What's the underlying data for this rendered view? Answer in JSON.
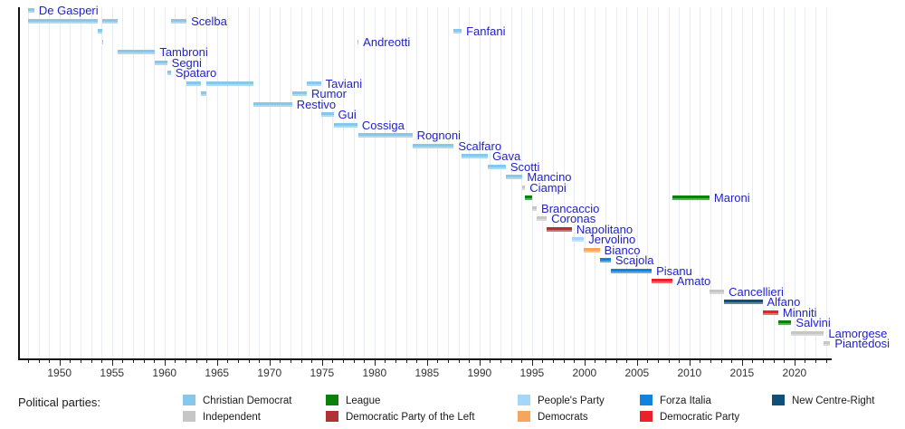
{
  "legend": {
    "label": "Political parties:",
    "columns": [
      {
        "items": [
          {
            "party": "christian_democrat",
            "label": "Christian Democrat"
          },
          {
            "party": "independent",
            "label": "Independent"
          }
        ]
      },
      {
        "items": [
          {
            "party": "league",
            "label": "League"
          },
          {
            "party": "democratic_party_of_the_left",
            "label": "Democratic Party of the Left"
          }
        ]
      },
      {
        "items": [
          {
            "party": "peoples_party",
            "label": "People's Party"
          },
          {
            "party": "democrats",
            "label": "Democrats"
          }
        ]
      },
      {
        "items": [
          {
            "party": "forza_italia",
            "label": "Forza Italia"
          },
          {
            "party": "democratic_party",
            "label": "Democratic Party"
          }
        ]
      },
      {
        "items": [
          {
            "party": "new_centre_right",
            "label": "New Centre-Right"
          }
        ]
      }
    ]
  },
  "party_colors": {
    "christian_democrat": "#87C8EA",
    "independent": "#C6C6C6",
    "league": "#0B800B",
    "democratic_party_of_the_left": "#B03232",
    "peoples_party": "#A6D6F6",
    "democrats": "#F6A55E",
    "forza_italia": "#1283DB",
    "democratic_party": "#E9212A",
    "new_centre_right": "#124F78"
  },
  "style_colors": {
    "minister_label": "#2222CC",
    "axis": "#111111",
    "tick_label": "#333333",
    "gridline": "#E9EDF2"
  },
  "chart_data": {
    "type": "timeline",
    "x_axis": {
      "start_year": 1946.1,
      "end_year": 2023.5,
      "major_tick_interval": 5,
      "minor_tick_interval": 1,
      "tick_labels": [
        "1950",
        "1955",
        "1960",
        "1965",
        "1970",
        "1975",
        "1980",
        "1985",
        "1990",
        "1995",
        "2000",
        "2005",
        "2010",
        "2015",
        "2020"
      ]
    },
    "grid": "yearly-vertical",
    "legend_position": "bottom",
    "rows": [
      {
        "name": "De Gasperi",
        "party": "christian_democrat",
        "terms": [
          [
            1947.0,
            1947.6
          ]
        ]
      },
      {
        "name": "Scelba",
        "party": "christian_democrat",
        "terms": [
          [
            1947.0,
            1953.6
          ],
          [
            1954.1,
            1955.5
          ],
          [
            1960.6,
            1962.1
          ]
        ]
      },
      {
        "name": "Fanfani",
        "party": "christian_democrat",
        "terms": [
          [
            1953.6,
            1954.05
          ],
          [
            1987.55,
            1988.3
          ]
        ]
      },
      {
        "name": "Andreotti",
        "party": "christian_democrat",
        "terms": [
          [
            1954.05,
            1954.17
          ],
          [
            1978.37,
            1978.48
          ]
        ]
      },
      {
        "name": "Tambroni",
        "party": "christian_democrat",
        "terms": [
          [
            1955.5,
            1959.1
          ]
        ]
      },
      {
        "name": "Segni",
        "party": "christian_democrat",
        "terms": [
          [
            1959.1,
            1960.25
          ]
        ]
      },
      {
        "name": "Spataro",
        "party": "christian_democrat",
        "terms": [
          [
            1960.25,
            1960.6
          ]
        ]
      },
      {
        "name": "Taviani",
        "party": "christian_democrat",
        "terms": [
          [
            1962.1,
            1963.5
          ],
          [
            1963.95,
            1968.5
          ],
          [
            1973.55,
            1974.9
          ]
        ]
      },
      {
        "name": "Rumor",
        "party": "christian_democrat",
        "terms": [
          [
            1963.5,
            1963.95
          ],
          [
            1972.15,
            1973.55
          ]
        ]
      },
      {
        "name": "Restivo",
        "party": "christian_democrat",
        "terms": [
          [
            1968.5,
            1972.15
          ]
        ]
      },
      {
        "name": "Gui",
        "party": "christian_democrat",
        "terms": [
          [
            1974.9,
            1976.1
          ]
        ]
      },
      {
        "name": "Cossiga",
        "party": "christian_democrat",
        "terms": [
          [
            1976.1,
            1978.37
          ]
        ]
      },
      {
        "name": "Rognoni",
        "party": "christian_democrat",
        "terms": [
          [
            1978.48,
            1983.6
          ]
        ]
      },
      {
        "name": "Scalfaro",
        "party": "christian_democrat",
        "terms": [
          [
            1983.6,
            1987.55
          ]
        ]
      },
      {
        "name": "Gava",
        "party": "christian_democrat",
        "terms": [
          [
            1988.3,
            1990.8
          ]
        ]
      },
      {
        "name": "Scotti",
        "party": "christian_democrat",
        "terms": [
          [
            1990.8,
            1992.5
          ]
        ]
      },
      {
        "name": "Mancino",
        "party": "christian_democrat",
        "terms": [
          [
            1992.5,
            1994.1
          ]
        ]
      },
      {
        "name": "Ciampi",
        "party": "independent",
        "terms": [
          [
            1994.1,
            1994.35
          ]
        ]
      },
      {
        "name": "Maroni",
        "party": "league",
        "terms": [
          [
            1994.35,
            1995.05
          ],
          [
            2008.35,
            2011.9
          ]
        ]
      },
      {
        "name": "Brancaccio",
        "party": "independent",
        "terms": [
          [
            1995.05,
            1995.45
          ]
        ]
      },
      {
        "name": "Coronas",
        "party": "independent",
        "terms": [
          [
            1995.45,
            1996.4
          ]
        ]
      },
      {
        "name": "Napolitano",
        "party": "democratic_party_of_the_left",
        "terms": [
          [
            1996.4,
            1998.8
          ]
        ]
      },
      {
        "name": "Jervolino",
        "party": "peoples_party",
        "terms": [
          [
            1998.8,
            1999.95
          ]
        ]
      },
      {
        "name": "Bianco",
        "party": "democrats",
        "terms": [
          [
            1999.95,
            2001.45
          ]
        ]
      },
      {
        "name": "Scajola",
        "party": "forza_italia",
        "terms": [
          [
            2001.45,
            2002.5
          ]
        ]
      },
      {
        "name": "Pisanu",
        "party": "forza_italia",
        "terms": [
          [
            2002.5,
            2006.4
          ]
        ]
      },
      {
        "name": "Amato",
        "party": "democratic_party",
        "terms": [
          [
            2006.4,
            2008.35
          ]
        ]
      },
      {
        "name": "Cancellieri",
        "party": "independent",
        "terms": [
          [
            2011.9,
            2013.3
          ]
        ]
      },
      {
        "name": "Alfano",
        "party": "new_centre_right",
        "terms": [
          [
            2013.3,
            2016.95
          ]
        ]
      },
      {
        "name": "Minniti",
        "party": "democratic_party",
        "terms": [
          [
            2016.95,
            2018.45
          ]
        ]
      },
      {
        "name": "Salvini",
        "party": "league",
        "terms": [
          [
            2018.45,
            2019.7
          ]
        ]
      },
      {
        "name": "Lamorgese",
        "party": "independent",
        "terms": [
          [
            2019.7,
            2022.8
          ]
        ]
      },
      {
        "name": "Piantedosi",
        "party": "independent",
        "terms": [
          [
            2022.8,
            2023.4
          ]
        ]
      }
    ]
  }
}
